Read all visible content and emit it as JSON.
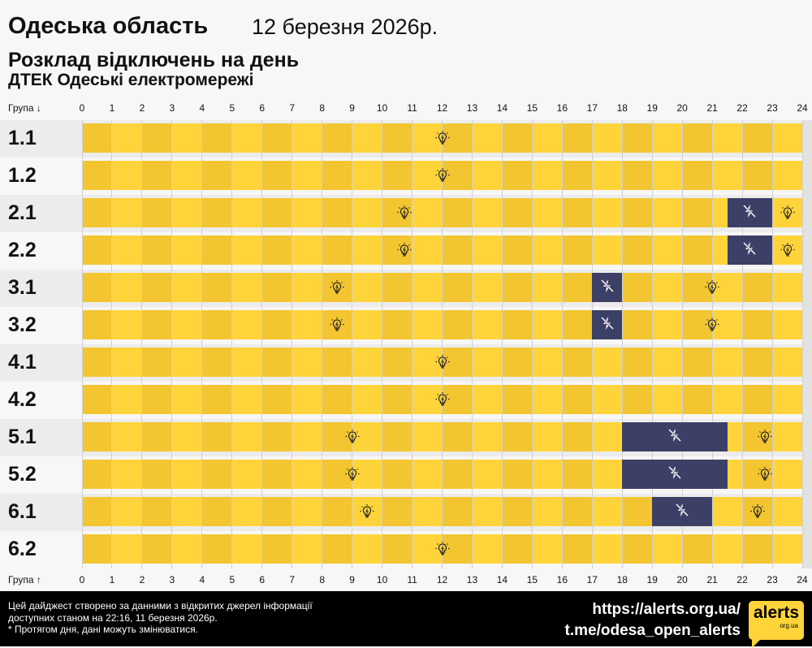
{
  "header": {
    "region": "Одеська область",
    "date": "12 березня 2026р.",
    "title": "Розклад відключень на день",
    "provider": "ДТЕК Одеські електромережі"
  },
  "axis": {
    "top_label": "Група ↓",
    "bottom_label": "Група ↑",
    "hours": [
      0,
      1,
      2,
      3,
      4,
      5,
      6,
      7,
      8,
      9,
      10,
      11,
      12,
      13,
      14,
      15,
      16,
      17,
      18,
      19,
      20,
      21,
      22,
      23,
      24
    ]
  },
  "colors": {
    "power_on_even": "#f2c531",
    "power_on_odd": "#ffd43a",
    "outage": "#3d4066"
  },
  "icons": {
    "power_on": "lightbulb-icon",
    "outage": "no-power-icon"
  },
  "groups": [
    {
      "name": "1.1",
      "outages": []
    },
    {
      "name": "1.2",
      "outages": []
    },
    {
      "name": "2.1",
      "outages": [
        [
          21.5,
          23
        ]
      ]
    },
    {
      "name": "2.2",
      "outages": [
        [
          21.5,
          23
        ]
      ]
    },
    {
      "name": "3.1",
      "outages": [
        [
          17,
          18
        ]
      ]
    },
    {
      "name": "3.2",
      "outages": [
        [
          17,
          18
        ]
      ]
    },
    {
      "name": "4.1",
      "outages": []
    },
    {
      "name": "4.2",
      "outages": []
    },
    {
      "name": "5.1",
      "outages": [
        [
          18,
          21.5
        ]
      ]
    },
    {
      "name": "5.2",
      "outages": [
        [
          18,
          21.5
        ]
      ]
    },
    {
      "name": "6.1",
      "outages": [
        [
          19,
          21
        ]
      ]
    },
    {
      "name": "6.2",
      "outages": []
    }
  ],
  "footer": {
    "note1": "Цей дайджест створено за данними з відкритих джерел інформації",
    "note2": "доступних станом на 22:16, 11 березня 2026р.",
    "note3": "* Протягом дня, дані можуть змінюватися.",
    "url": "https://alerts.org.ua/",
    "telegram": "t.me/odesa_open_alerts",
    "logo_main": "alerts",
    "logo_sub": "org.ua"
  }
}
